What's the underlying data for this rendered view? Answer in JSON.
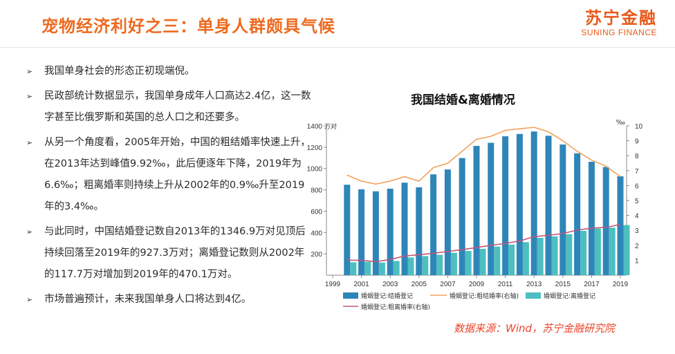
{
  "header": {
    "title": "宠物经济利好之三：单身人群颇具气候",
    "logo_cn": "苏宁金融",
    "logo_en": "SUNING FINANCE"
  },
  "bullets": [
    "我国单身社会的形态正初现端倪。",
    "民政部统计数据显示，我国单身成年人口高达2.4亿，这一数字甚至比俄罗斯和英国的总人口之和还要多。",
    "从另一个角度看，2005年开始，中国的粗结婚率快速上升，在2013年达到峰值9.92‰，此后便逐年下降，2019年为6.6‰；粗离婚率则持续上升从2002年的0.9‰升至2019年的3.4‰。",
    "与此同时，中国结婚登记数自2013年的1346.9万对见顶后持续回落至2019年的927.3万对；离婚登记数则从2002年的117.7万对增加到2019年的470.1万对。",
    "市场普遍预计，未来我国单身人口将达到4亿。"
  ],
  "colors": {
    "accent": "#ee6a1f",
    "marriage_bar": "#2e86b8",
    "divorce_bar": "#4dbfc0",
    "marriage_rate_line": "#f2a15a",
    "divorce_rate_line": "#c2567a",
    "source_text": "#e8452b"
  },
  "chart_data": {
    "type": "bar",
    "title": "我国结婚&离婚情况",
    "y_left_unit": "万对",
    "y_right_unit": "‰",
    "ylim_left": [
      0,
      1400
    ],
    "ylim_right": [
      0,
      10
    ],
    "y_left_ticks": [
      "200",
      "400",
      "600",
      "800",
      "1000",
      "1200",
      "1400"
    ],
    "y_right_ticks": [
      "1",
      "2",
      "3",
      "4",
      "5",
      "6",
      "7",
      "8",
      "9",
      "10"
    ],
    "x_tick_labels": [
      "1999",
      "2001",
      "2003",
      "2005",
      "2007",
      "2009",
      "2011",
      "2013",
      "2015",
      "2017",
      "2019"
    ],
    "x": [
      1999,
      2000,
      2001,
      2002,
      2003,
      2004,
      2005,
      2006,
      2007,
      2008,
      2009,
      2010,
      2011,
      2012,
      2013,
      2014,
      2015,
      2016,
      2017,
      2018,
      2019
    ],
    "series": [
      {
        "name": "婚姻登记:结婚登记",
        "type": "bar",
        "axis": "left",
        "values": [
          null,
          848,
          805,
          786,
          811,
          867,
          824,
          945,
          991,
          1098,
          1212,
          1241,
          1302,
          1324,
          1347,
          1307,
          1225,
          1142,
          1063,
          1014,
          927
        ]
      },
      {
        "name": "婚姻登记:粗结婚率(右轴)",
        "type": "line",
        "axis": "right",
        "values": [
          null,
          6.7,
          6.3,
          6.1,
          6.3,
          6.6,
          6.3,
          7.2,
          7.5,
          8.3,
          9.1,
          9.3,
          9.7,
          9.8,
          9.9,
          9.6,
          9.0,
          8.3,
          7.7,
          7.3,
          6.6
        ]
      },
      {
        "name": "婚姻登记:离婚登记",
        "type": "bar",
        "axis": "left",
        "values": [
          null,
          121,
          125,
          118,
          133,
          166,
          179,
          191,
          210,
          227,
          247,
          268,
          287,
          310,
          350,
          364,
          384,
          416,
          437,
          446,
          470
        ]
      },
      {
        "name": "婚姻登记:粗离婚率(右轴)",
        "type": "line",
        "axis": "right",
        "values": [
          null,
          1.0,
          1.0,
          0.9,
          1.05,
          1.28,
          1.37,
          1.46,
          1.59,
          1.71,
          1.85,
          2.0,
          2.13,
          2.29,
          2.58,
          2.67,
          2.79,
          3.02,
          3.15,
          3.2,
          3.4
        ]
      }
    ],
    "legend": [
      "婚姻登记:结婚登记",
      "婚姻登记:粗结婚率(右轴)",
      "婚姻登记:离婚登记",
      "婚姻登记:粗离婚率(右轴)"
    ],
    "legend_position": "bottom",
    "grid": false
  },
  "source_note": "数据来源：Wind，苏宁金融研究院"
}
